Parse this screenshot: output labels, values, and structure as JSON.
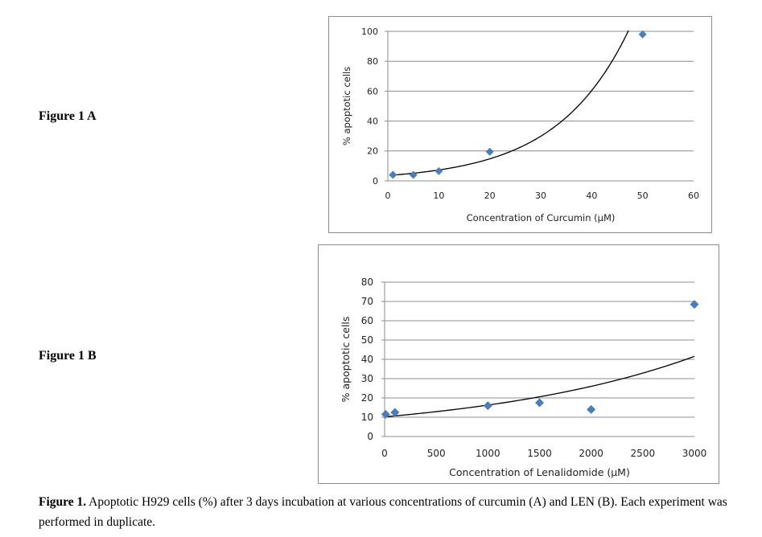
{
  "figure_labels": {
    "a": "Figure 1 A",
    "b": "Figure 1 B"
  },
  "caption": {
    "bold": "Figure 1.",
    "text": " Apoptotic H929 cells (%) after 3 days incubation at various concentrations of curcumin (A) and LEN (B). Each experiment was performed in duplicate."
  },
  "colors": {
    "marker": "#4a7ebb",
    "trend": "#000000",
    "grid": "#8c8c8c"
  },
  "chart_data": [
    {
      "id": "A",
      "type": "scatter",
      "title": "",
      "xlabel": "Concentration of Curcumin (µM)",
      "ylabel": "% apoptotic cells",
      "xlim": [
        0,
        60
      ],
      "ylim": [
        0,
        100
      ],
      "xticks": [
        0,
        10,
        20,
        30,
        40,
        50,
        60
      ],
      "yticks": [
        0,
        20,
        40,
        60,
        80,
        100
      ],
      "grid": "horizontal",
      "series": [
        {
          "name": "data",
          "x": [
            1,
            5,
            10,
            20,
            50
          ],
          "y": [
            4,
            4,
            6.5,
            19.5,
            98
          ]
        }
      ],
      "trendline": {
        "type": "exponential",
        "a": 3.6,
        "b": 0.0705,
        "x_range": [
          1,
          50
        ]
      }
    },
    {
      "id": "B",
      "type": "scatter",
      "title": "",
      "xlabel": "Concentration of Lenalidomide (µM)",
      "ylabel": "% apoptotic cells",
      "xlim": [
        0,
        3000
      ],
      "ylim": [
        0,
        80
      ],
      "xticks": [
        0,
        500,
        1000,
        1500,
        2000,
        2500,
        3000
      ],
      "yticks": [
        0,
        10,
        20,
        30,
        40,
        50,
        60,
        70,
        80
      ],
      "grid": "horizontal",
      "series": [
        {
          "name": "data",
          "x": [
            10,
            100,
            1000,
            1500,
            2000,
            3000
          ],
          "y": [
            11.5,
            12.5,
            16,
            17.5,
            14,
            68.5
          ]
        }
      ],
      "trendline": {
        "type": "exponential",
        "a": 10.2,
        "b": 0.000468,
        "x_range": [
          0,
          3000
        ]
      }
    }
  ]
}
